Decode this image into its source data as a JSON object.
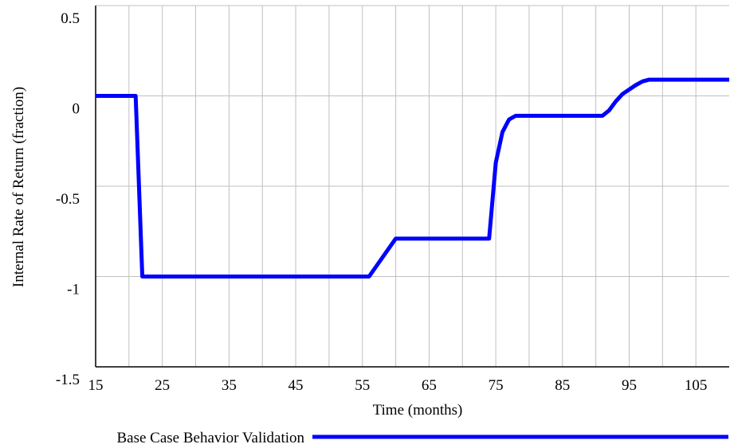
{
  "chart_data": {
    "type": "line",
    "x_label": "Time (months)",
    "y_label": "Internal Rate of Return (fraction)",
    "x": [
      15,
      21,
      22,
      56,
      60,
      74,
      75,
      76,
      77,
      78,
      91,
      92,
      93,
      94,
      96,
      97,
      98,
      110
    ],
    "series": [
      {
        "name": "Base Case Behavior Validation",
        "color": "#0000ff",
        "values": [
          0.0,
          0.0,
          -1,
          -1,
          -0.79,
          -0.79,
          -0.37,
          -0.2,
          -0.13,
          -0.11,
          -0.11,
          -0.08,
          -0.03,
          0.01,
          0.06,
          0.08,
          0.09,
          0.09
        ]
      }
    ],
    "xlim": [
      15,
      110
    ],
    "xticks": [
      15,
      25,
      35,
      45,
      55,
      65,
      75,
      85,
      95,
      105
    ],
    "x_grid": [
      20,
      30,
      40,
      50,
      60,
      70,
      80,
      90,
      100
    ],
    "ylim": [
      -1.5,
      0.5
    ],
    "yticks": [
      0.5,
      0,
      -0.5,
      -1,
      -1.5
    ],
    "grid": true,
    "legend": "bottom"
  }
}
